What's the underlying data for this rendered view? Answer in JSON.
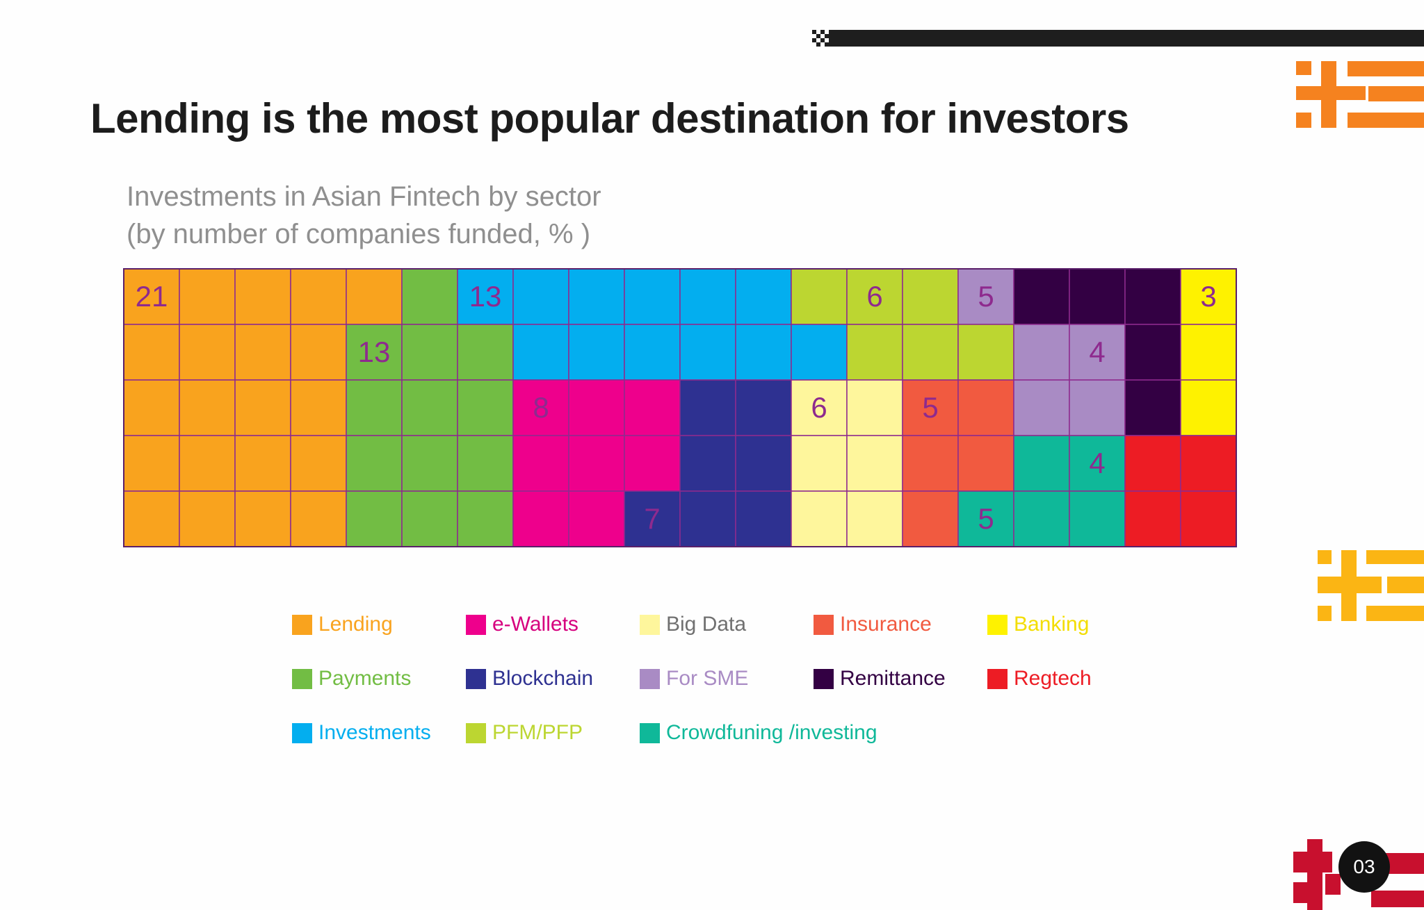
{
  "title": "Lending is the most popular destination for investors",
  "subtitle_line1": "Investments in Asian Fintech by sector",
  "subtitle_line2": "(by number of companies funded, % )",
  "page_number": "03",
  "colors": {
    "grid_line": "#8e2a8e",
    "label_text": "#8e2a8e",
    "top_bar": "#1e1e1e",
    "deco_orange": "#f5821f",
    "deco_yellow": "#fbb514",
    "deco_red": "#c8102e"
  },
  "chart_data": {
    "type": "waffle",
    "grid": {
      "columns": 20,
      "rows": 5
    },
    "title": "Investments in Asian Fintech by sector",
    "unit": "% of companies funded",
    "sectors": [
      {
        "name": "Lending",
        "value": 21,
        "color": "#f9a31e"
      },
      {
        "name": "Payments",
        "value": 13,
        "color": "#72bd44"
      },
      {
        "name": "Investments",
        "value": 13,
        "color": "#03aeef"
      },
      {
        "name": "e-Wallets",
        "value": 8,
        "color": "#ee008c"
      },
      {
        "name": "Blockchain",
        "value": 7,
        "color": "#2e3191"
      },
      {
        "name": "PFM/PFP",
        "value": 6,
        "color": "#bcd631"
      },
      {
        "name": "Big Data",
        "value": 6,
        "color": "#fef69c"
      },
      {
        "name": "For SME",
        "value": 5,
        "color": "#a98bc4"
      },
      {
        "name": "Insurance",
        "value": 5,
        "color": "#f15a40"
      },
      {
        "name": "Crowdfuning /investing",
        "value": 5,
        "color": "#0fb899"
      },
      {
        "name": "Remittance",
        "value": 4,
        "color": "#330043"
      },
      {
        "name": "Regtech",
        "value": 4,
        "color": "#ed1c24"
      },
      {
        "name": "Banking",
        "value": 3,
        "color": "#fef200"
      }
    ],
    "legend": [
      {
        "label": "Lending",
        "color": "#f9a31e",
        "text_color": "#f9a31e"
      },
      {
        "label": "e-Wallets",
        "color": "#ee008c",
        "text_color": "#d6007e"
      },
      {
        "label": "Big Data",
        "color": "#fef69c",
        "text_color": "#707070"
      },
      {
        "label": "Insurance",
        "color": "#f15a40",
        "text_color": "#f15a40"
      },
      {
        "label": "Banking",
        "color": "#fef200",
        "text_color": "#f3dd00"
      },
      {
        "label": "Payments",
        "color": "#72bd44",
        "text_color": "#72bd44"
      },
      {
        "label": "Blockchain",
        "color": "#2e3191",
        "text_color": "#2e3191"
      },
      {
        "label": "For SME",
        "color": "#a98bc4",
        "text_color": "#a98bc4"
      },
      {
        "label": "Remittance",
        "color": "#330043",
        "text_color": "#330043"
      },
      {
        "label": "Regtech",
        "color": "#ed1c24",
        "text_color": "#ed1c24"
      },
      {
        "label": "Investments",
        "color": "#03aeef",
        "text_color": "#03aeef"
      },
      {
        "label": "PFM/PFP",
        "color": "#bcd631",
        "text_color": "#bcd631"
      },
      {
        "label": "Crowdfuning /investing",
        "color": "#0fb899",
        "text_color": "#0fb899"
      }
    ]
  }
}
